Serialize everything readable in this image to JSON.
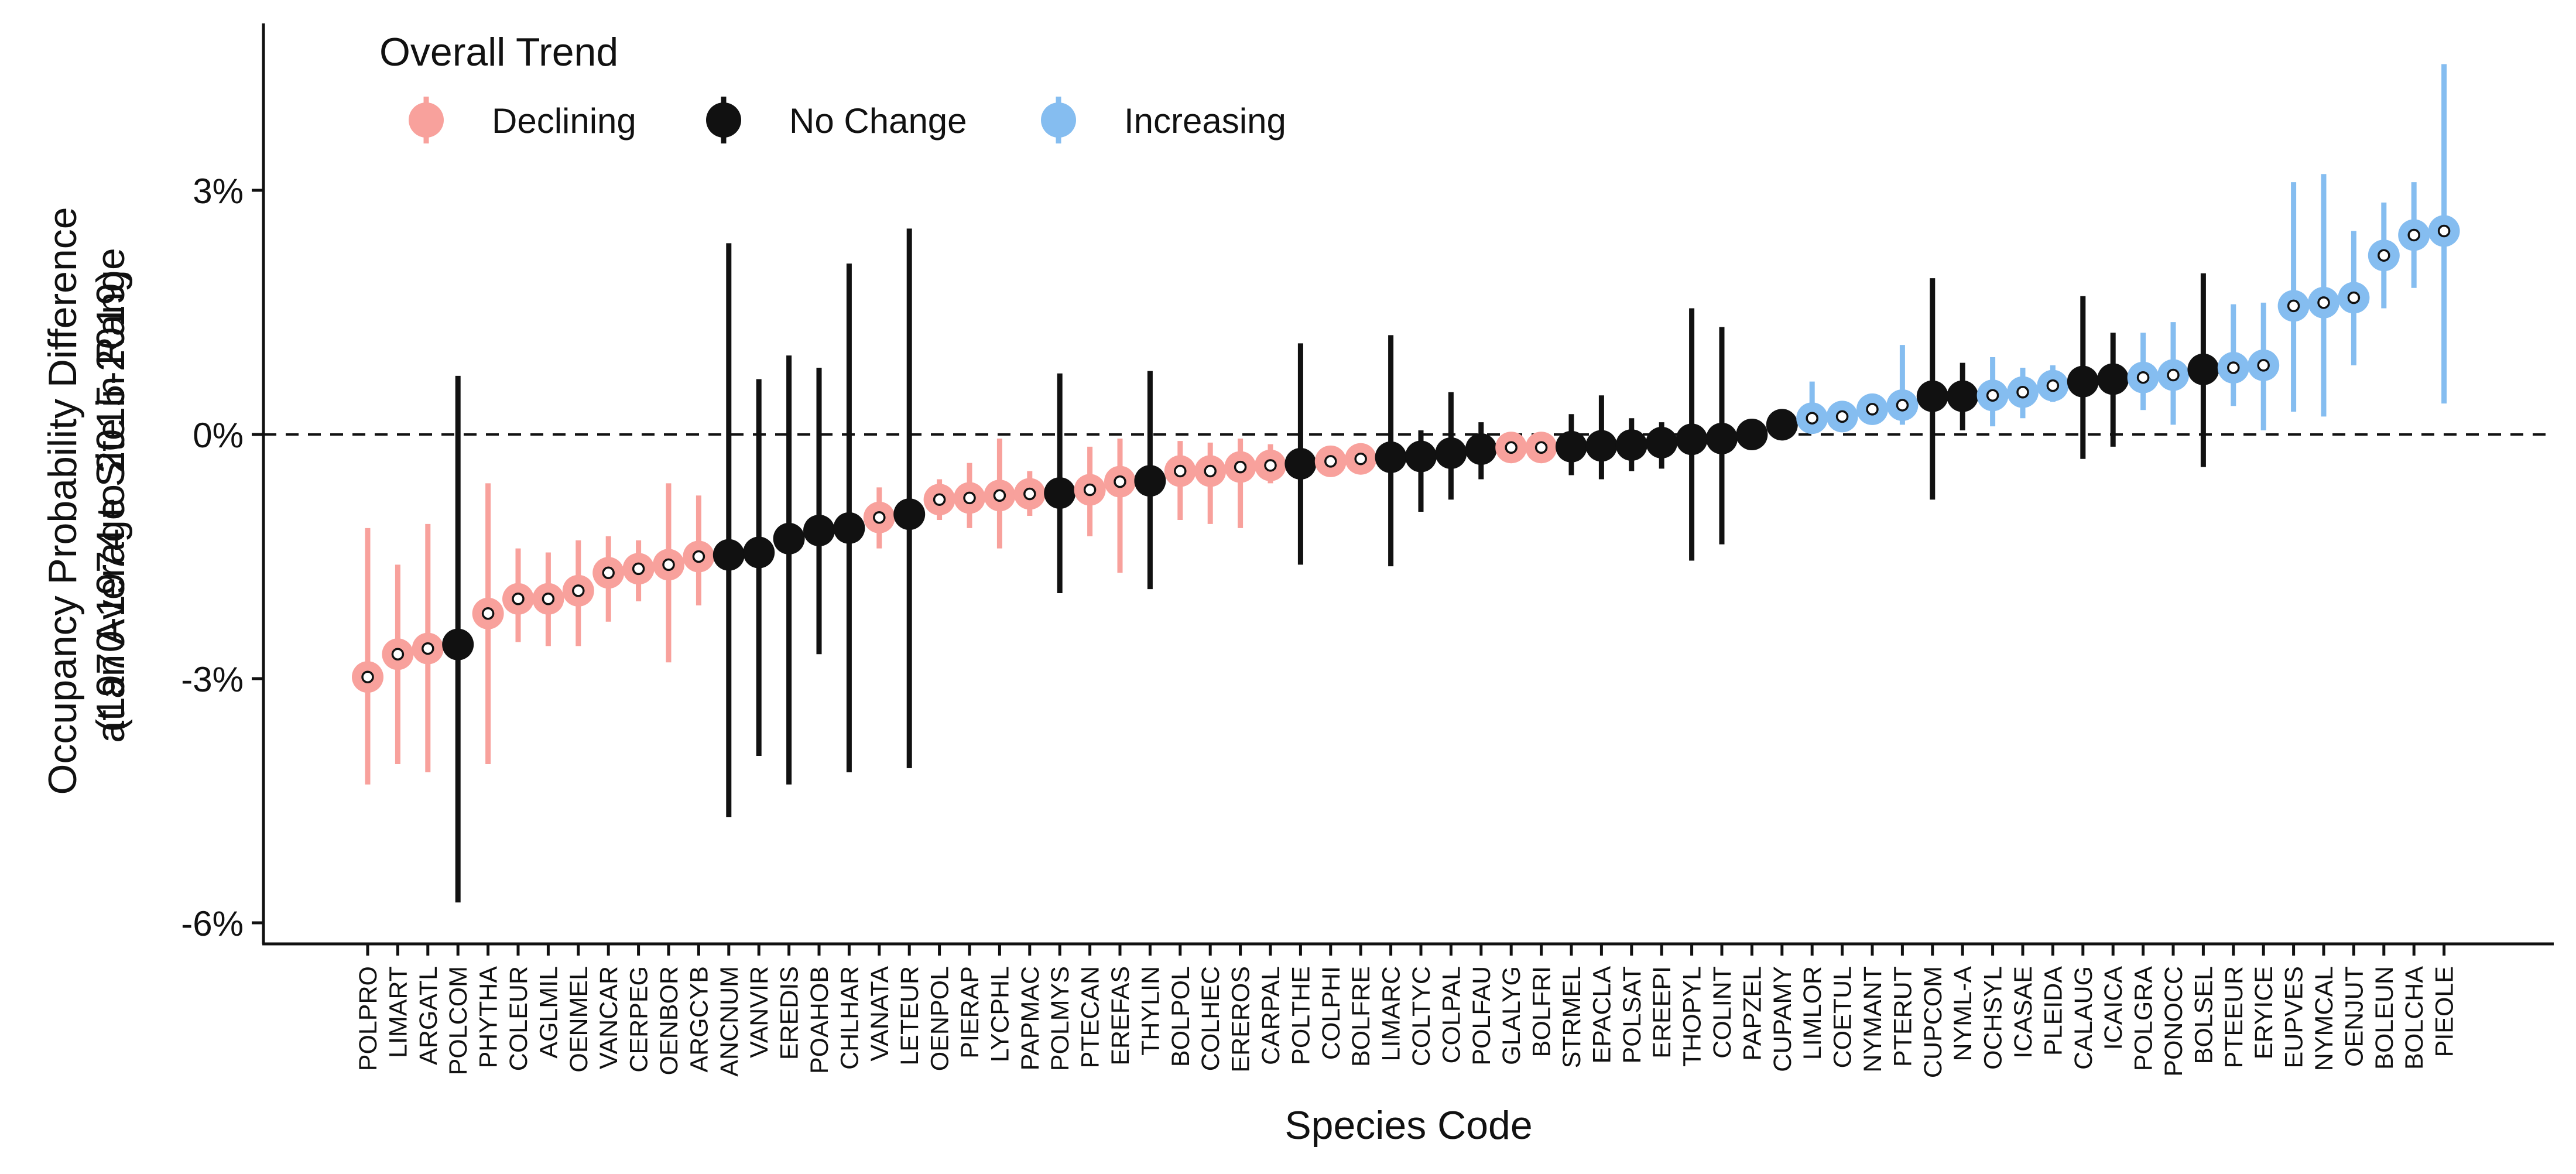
{
  "chart_data": {
    "type": "scatter",
    "subtype": "point-range",
    "title": "",
    "xlabel": "Species Code",
    "ylabel_lines": [
      "Occupancy Probability Difference",
      "(1970-1974 to 2015-2019)",
      "at an Average Site in Range"
    ],
    "ylim": [
      -6.2,
      5.0
    ],
    "y_ticks": [
      -6,
      -3,
      0,
      3
    ],
    "y_tick_labels": [
      "-6%",
      "-3%",
      "0%",
      "3%"
    ],
    "reference_line": {
      "y": 0,
      "style": "dashed"
    },
    "grid": false,
    "legend": {
      "title": "Overall Trend",
      "position": "top-left",
      "entries": [
        {
          "key": "declining",
          "label": "Declining",
          "color": "#f8a19c"
        },
        {
          "key": "nochange",
          "label": "No Change",
          "color": "#111111"
        },
        {
          "key": "increasing",
          "label": "Increasing",
          "color": "#85bdf0"
        }
      ]
    },
    "colors": {
      "declining": "#f8a19c",
      "nochange": "#111111",
      "increasing": "#85bdf0",
      "marker_center": "#ffffff"
    },
    "points": [
      {
        "code": "POLPRO",
        "trend": "declining",
        "y": -2.98,
        "lo": -4.3,
        "hi": -1.15
      },
      {
        "code": "LIMART",
        "trend": "declining",
        "y": -2.7,
        "lo": -4.05,
        "hi": -1.6
      },
      {
        "code": "ARGATL",
        "trend": "declining",
        "y": -2.63,
        "lo": -4.15,
        "hi": -1.1
      },
      {
        "code": "POLCOM",
        "trend": "nochange",
        "y": -2.58,
        "lo": -5.75,
        "hi": 0.72
      },
      {
        "code": "PHYTHA",
        "trend": "declining",
        "y": -2.2,
        "lo": -4.05,
        "hi": -0.6
      },
      {
        "code": "COLEUR",
        "trend": "declining",
        "y": -2.02,
        "lo": -2.55,
        "hi": -1.4
      },
      {
        "code": "AGLMIL",
        "trend": "declining",
        "y": -2.02,
        "lo": -2.6,
        "hi": -1.45
      },
      {
        "code": "OENMEL",
        "trend": "declining",
        "y": -1.92,
        "lo": -2.6,
        "hi": -1.3
      },
      {
        "code": "VANCAR",
        "trend": "declining",
        "y": -1.7,
        "lo": -2.3,
        "hi": -1.25
      },
      {
        "code": "CERPEG",
        "trend": "declining",
        "y": -1.65,
        "lo": -2.05,
        "hi": -1.3
      },
      {
        "code": "OENBOR",
        "trend": "declining",
        "y": -1.6,
        "lo": -2.8,
        "hi": -0.6
      },
      {
        "code": "ARGCYB",
        "trend": "declining",
        "y": -1.5,
        "lo": -2.1,
        "hi": -0.75
      },
      {
        "code": "ANCNUM",
        "trend": "nochange",
        "y": -1.48,
        "lo": -4.7,
        "hi": 2.35
      },
      {
        "code": "VANVIR",
        "trend": "nochange",
        "y": -1.45,
        "lo": -3.95,
        "hi": 0.68
      },
      {
        "code": "EREDIS",
        "trend": "nochange",
        "y": -1.28,
        "lo": -4.3,
        "hi": 0.97
      },
      {
        "code": "POAHOB",
        "trend": "nochange",
        "y": -1.18,
        "lo": -2.7,
        "hi": 0.82
      },
      {
        "code": "CHLHAR",
        "trend": "nochange",
        "y": -1.15,
        "lo": -4.15,
        "hi": 2.1
      },
      {
        "code": "VANATA",
        "trend": "declining",
        "y": -1.02,
        "lo": -1.4,
        "hi": -0.65
      },
      {
        "code": "LETEUR",
        "trend": "nochange",
        "y": -0.98,
        "lo": -4.1,
        "hi": 2.53
      },
      {
        "code": "OENPOL",
        "trend": "declining",
        "y": -0.8,
        "lo": -1.05,
        "hi": -0.55
      },
      {
        "code": "PIERAP",
        "trend": "declining",
        "y": -0.78,
        "lo": -1.15,
        "hi": -0.35
      },
      {
        "code": "LYCPHL",
        "trend": "declining",
        "y": -0.75,
        "lo": -1.4,
        "hi": -0.05
      },
      {
        "code": "PAPMAC",
        "trend": "declining",
        "y": -0.73,
        "lo": -1.0,
        "hi": -0.45
      },
      {
        "code": "POLMYS",
        "trend": "nochange",
        "y": -0.72,
        "lo": -1.95,
        "hi": 0.75
      },
      {
        "code": "PTECAN",
        "trend": "declining",
        "y": -0.68,
        "lo": -1.25,
        "hi": -0.15
      },
      {
        "code": "EREFAS",
        "trend": "declining",
        "y": -0.58,
        "lo": -1.7,
        "hi": -0.05
      },
      {
        "code": "THYLIN",
        "trend": "nochange",
        "y": -0.57,
        "lo": -1.9,
        "hi": 0.78
      },
      {
        "code": "BOLPOL",
        "trend": "declining",
        "y": -0.45,
        "lo": -1.05,
        "hi": -0.08
      },
      {
        "code": "COLHEC",
        "trend": "declining",
        "y": -0.45,
        "lo": -1.1,
        "hi": -0.1
      },
      {
        "code": "EREROS",
        "trend": "declining",
        "y": -0.4,
        "lo": -1.15,
        "hi": -0.05
      },
      {
        "code": "CARPAL",
        "trend": "declining",
        "y": -0.38,
        "lo": -0.6,
        "hi": -0.12
      },
      {
        "code": "POLTHE",
        "trend": "nochange",
        "y": -0.36,
        "lo": -1.6,
        "hi": 1.12
      },
      {
        "code": "COLPHI",
        "trend": "declining",
        "y": -0.33,
        "lo": -0.45,
        "hi": -0.2
      },
      {
        "code": "BOLFRE",
        "trend": "declining",
        "y": -0.3,
        "lo": -0.42,
        "hi": -0.18
      },
      {
        "code": "LIMARC",
        "trend": "nochange",
        "y": -0.28,
        "lo": -1.62,
        "hi": 1.22
      },
      {
        "code": "COLTYC",
        "trend": "nochange",
        "y": -0.27,
        "lo": -0.95,
        "hi": 0.05
      },
      {
        "code": "COLPAL",
        "trend": "nochange",
        "y": -0.23,
        "lo": -0.8,
        "hi": 0.52
      },
      {
        "code": "POLFAU",
        "trend": "nochange",
        "y": -0.18,
        "lo": -0.55,
        "hi": 0.15
      },
      {
        "code": "GLALYG",
        "trend": "declining",
        "y": -0.16,
        "lo": -0.25,
        "hi": -0.07
      },
      {
        "code": "BOLFRI",
        "trend": "declining",
        "y": -0.16,
        "lo": -0.25,
        "hi": -0.07
      },
      {
        "code": "STRMEL",
        "trend": "nochange",
        "y": -0.15,
        "lo": -0.5,
        "hi": 0.25
      },
      {
        "code": "EPACLA",
        "trend": "nochange",
        "y": -0.14,
        "lo": -0.55,
        "hi": 0.48
      },
      {
        "code": "POLSAT",
        "trend": "nochange",
        "y": -0.13,
        "lo": -0.45,
        "hi": 0.2
      },
      {
        "code": "EREEPI",
        "trend": "nochange",
        "y": -0.1,
        "lo": -0.42,
        "hi": 0.15
      },
      {
        "code": "THOPYL",
        "trend": "nochange",
        "y": -0.06,
        "lo": -1.55,
        "hi": 1.55
      },
      {
        "code": "COLINT",
        "trend": "nochange",
        "y": -0.05,
        "lo": -1.35,
        "hi": 1.32
      },
      {
        "code": "PAPZEL",
        "trend": "nochange",
        "y": 0.0,
        "lo": -0.12,
        "hi": 0.15
      },
      {
        "code": "CUPAMY",
        "trend": "nochange",
        "y": 0.12,
        "lo": 0.0,
        "hi": 0.22
      },
      {
        "code": "LIMLOR",
        "trend": "increasing",
        "y": 0.2,
        "lo": 0.05,
        "hi": 0.65
      },
      {
        "code": "COETUL",
        "trend": "increasing",
        "y": 0.22,
        "lo": 0.1,
        "hi": 0.38
      },
      {
        "code": "NYMANT",
        "trend": "increasing",
        "y": 0.31,
        "lo": 0.15,
        "hi": 0.45
      },
      {
        "code": "PTERUT",
        "trend": "increasing",
        "y": 0.36,
        "lo": 0.12,
        "hi": 1.1
      },
      {
        "code": "CUPCOM",
        "trend": "nochange",
        "y": 0.47,
        "lo": -0.8,
        "hi": 1.92
      },
      {
        "code": "NYML-A",
        "trend": "nochange",
        "y": 0.47,
        "lo": 0.05,
        "hi": 0.88
      },
      {
        "code": "OCHSYL",
        "trend": "increasing",
        "y": 0.48,
        "lo": 0.1,
        "hi": 0.95
      },
      {
        "code": "ICASAE",
        "trend": "increasing",
        "y": 0.52,
        "lo": 0.2,
        "hi": 0.82
      },
      {
        "code": "PLEIDA",
        "trend": "increasing",
        "y": 0.6,
        "lo": 0.4,
        "hi": 0.85
      },
      {
        "code": "CALAUG",
        "trend": "nochange",
        "y": 0.65,
        "lo": -0.3,
        "hi": 1.7
      },
      {
        "code": "ICAICA",
        "trend": "nochange",
        "y": 0.68,
        "lo": -0.15,
        "hi": 1.25
      },
      {
        "code": "POLGRA",
        "trend": "increasing",
        "y": 0.7,
        "lo": 0.3,
        "hi": 1.25
      },
      {
        "code": "PONOCC",
        "trend": "increasing",
        "y": 0.73,
        "lo": 0.12,
        "hi": 1.38
      },
      {
        "code": "BOLSEL",
        "trend": "nochange",
        "y": 0.8,
        "lo": -0.4,
        "hi": 1.98
      },
      {
        "code": "PTEEUR",
        "trend": "increasing",
        "y": 0.82,
        "lo": 0.35,
        "hi": 1.6
      },
      {
        "code": "ERYICE",
        "trend": "increasing",
        "y": 0.85,
        "lo": 0.05,
        "hi": 1.62
      },
      {
        "code": "EUPVES",
        "trend": "increasing",
        "y": 1.58,
        "lo": 0.28,
        "hi": 3.1
      },
      {
        "code": "NYMCAL",
        "trend": "increasing",
        "y": 1.62,
        "lo": 0.22,
        "hi": 3.2
      },
      {
        "code": "OENJUT",
        "trend": "increasing",
        "y": 1.68,
        "lo": 0.85,
        "hi": 2.5
      },
      {
        "code": "BOLEUN",
        "trend": "increasing",
        "y": 2.2,
        "lo": 1.55,
        "hi": 2.85
      },
      {
        "code": "BOLCHA",
        "trend": "increasing",
        "y": 2.45,
        "lo": 1.8,
        "hi": 3.1
      },
      {
        "code": "PIEOLE",
        "trend": "increasing",
        "y": 2.5,
        "lo": 0.38,
        "hi": 4.55
      }
    ]
  }
}
